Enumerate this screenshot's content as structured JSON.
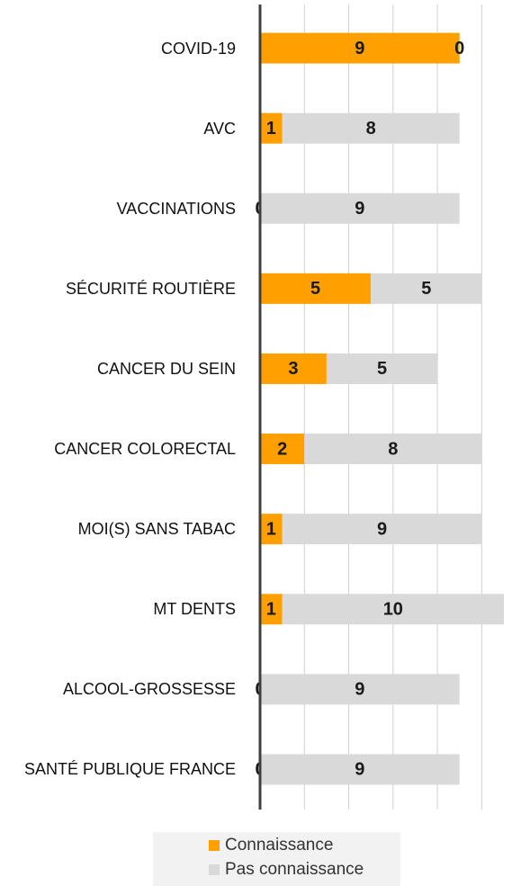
{
  "chart_data": {
    "type": "stacked-barh",
    "categories": [
      "COVID-19",
      "AVC",
      "VACCINATIONS",
      "SÉCURITÉ ROUTIÈRE",
      "CANCER DU SEIN",
      "CANCER COLORECTAL",
      "MOI(S) SANS TABAC",
      "MT DENTS",
      "ALCOOL-GROSSESSE",
      "SANTÉ PUBLIQUE FRANCE"
    ],
    "series": [
      {
        "name": "Connaissance",
        "color": "#ffa000",
        "values": [
          9,
          1,
          0,
          5,
          3,
          2,
          1,
          1,
          0,
          0
        ]
      },
      {
        "name": "Pas connaissance",
        "color": "#d9d9d9",
        "values": [
          0,
          8,
          9,
          5,
          5,
          8,
          9,
          10,
          9,
          9
        ]
      }
    ],
    "xlim": [
      0,
      11
    ],
    "xticks": [
      0,
      2,
      4,
      6,
      8,
      10
    ],
    "grid": true,
    "legend": "bottom"
  }
}
